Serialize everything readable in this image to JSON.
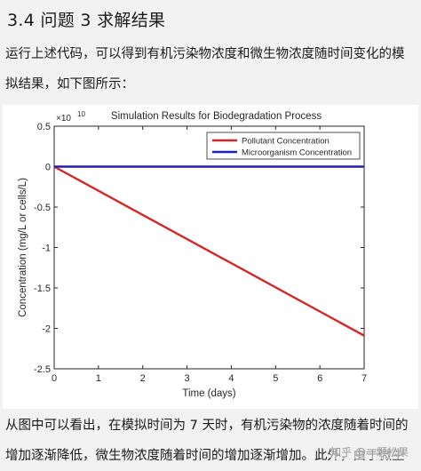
{
  "heading": "3.4 问题 3 求解结果",
  "intro_line1": "运行上述代码，可以得到有机污染物浓度和微生物浓度随时间变化的模",
  "intro_line2": "拟结果，如下图所示：",
  "conclusion_line1": "从图中可以看出，在模拟时间为 7 天时，有机污染物的浓度随着时间的",
  "conclusion_line2": "增加逐渐降低，微生物浓度随着时间的增加逐渐增加。此外，由于微生",
  "watermark": "知乎 @一颗松果",
  "chart_data": {
    "type": "line",
    "title": "Simulation Results for Biodegradation Process",
    "xlabel": "Time (days)",
    "ylabel": "Concentration (mg/L or cells/L)",
    "y_exponent_base": "×10",
    "y_exponent_power": "10",
    "xlim": [
      0,
      7
    ],
    "ylim": [
      -2.5,
      0.5
    ],
    "x_ticks": [
      0,
      1,
      2,
      3,
      4,
      5,
      6,
      7
    ],
    "y_ticks": [
      0.5,
      0,
      -0.5,
      -1,
      -1.5,
      -2,
      -2.5
    ],
    "x_tick_labels": [
      "0",
      "1",
      "2",
      "3",
      "4",
      "5",
      "6",
      "7"
    ],
    "y_tick_labels": [
      "0.5",
      "0",
      "-0.5",
      "-1",
      "-1.5",
      "-2",
      "-2.5"
    ],
    "legend_position": "top-right",
    "grid": false,
    "series": [
      {
        "name": "Pollutant Concentration",
        "color": "#d62728",
        "x": [
          0,
          7
        ],
        "y": [
          0,
          -2.09
        ]
      },
      {
        "name": "Microorganism Concentration",
        "color": "#1f1fb4",
        "x": [
          0,
          7
        ],
        "y": [
          0,
          0
        ]
      }
    ]
  }
}
